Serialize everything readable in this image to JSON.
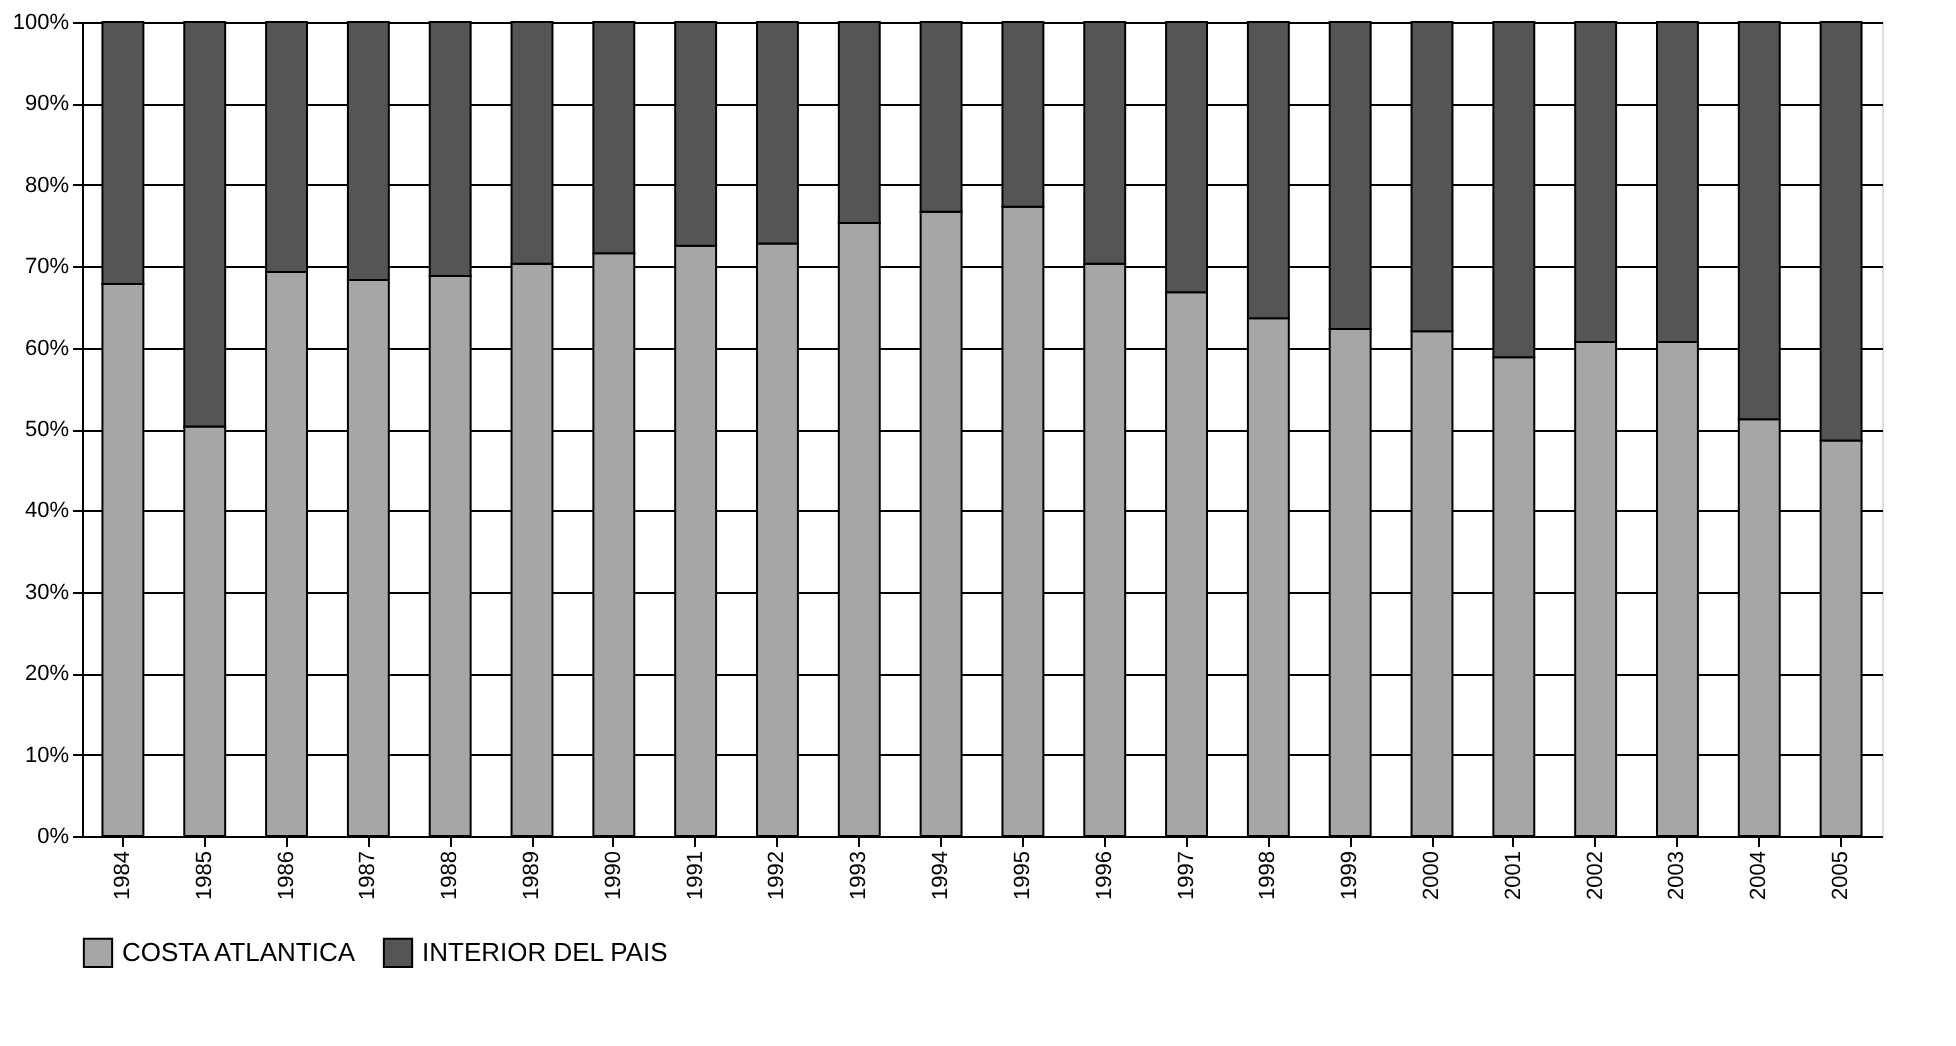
{
  "chart_data": {
    "type": "bar",
    "stacked": true,
    "categories": [
      "1984",
      "1985",
      "1986",
      "1987",
      "1988",
      "1989",
      "1990",
      "1991",
      "1992",
      "1993",
      "1994",
      "1995",
      "1996",
      "1997",
      "1998",
      "1999",
      "2000",
      "2001",
      "2002",
      "2003",
      "2004",
      "2005"
    ],
    "series": [
      {
        "name": "COSTA ATLANTICA",
        "color": "#a6a6a6",
        "values": [
          67.8,
          50.3,
          69.3,
          68.3,
          68.8,
          70.3,
          71.6,
          72.5,
          72.8,
          75.3,
          76.7,
          77.3,
          70.3,
          66.8,
          63.6,
          62.3,
          62.0,
          58.8,
          60.7,
          60.7,
          51.2,
          48.6
        ]
      },
      {
        "name": "INTERIOR DEL PAIS",
        "color": "#555555",
        "values": [
          32.2,
          49.7,
          30.7,
          31.7,
          31.2,
          29.7,
          28.4,
          27.5,
          27.2,
          24.7,
          23.3,
          22.7,
          29.7,
          33.2,
          36.4,
          37.7,
          38.0,
          41.2,
          39.3,
          39.3,
          48.8,
          51.4
        ]
      }
    ],
    "ylim": [
      0,
      100
    ],
    "yticks": [
      {
        "value": 0,
        "label": "0%"
      },
      {
        "value": 10,
        "label": "10%"
      },
      {
        "value": 20,
        "label": "20%"
      },
      {
        "value": 30,
        "label": "30%"
      },
      {
        "value": 40,
        "label": "40%"
      },
      {
        "value": 50,
        "label": "50%"
      },
      {
        "value": 60,
        "label": "60%"
      },
      {
        "value": 70,
        "label": "70%"
      },
      {
        "value": 80,
        "label": "80%"
      },
      {
        "value": 90,
        "label": "90%"
      },
      {
        "value": 100,
        "label": "100%"
      }
    ],
    "grid": "y",
    "legend": "bottom"
  }
}
